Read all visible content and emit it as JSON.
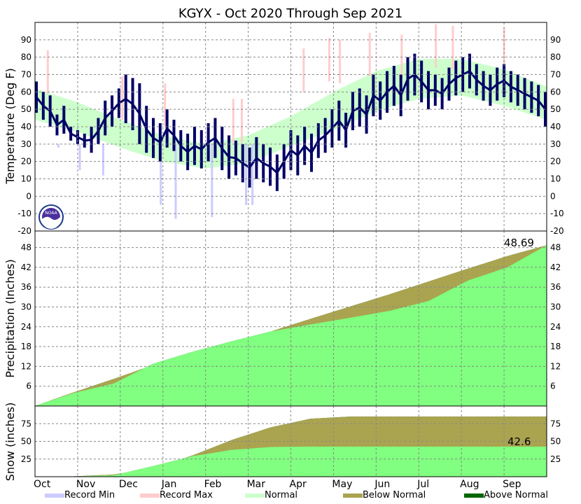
{
  "title": "KGYX - Oct 2020 Through Sep 2021",
  "months": [
    "Oct",
    "Nov",
    "Dec",
    "Jan",
    "Feb",
    "Mar",
    "Apr",
    "May",
    "Jun",
    "Jul",
    "Aug",
    "Sep"
  ],
  "logo_text": "NOAA",
  "colors": {
    "record_min": "#ccccff",
    "record_max": "#ffcccc",
    "normal": "#ccffcc",
    "below_normal": "#aaa450",
    "above_normal": "#006600",
    "observed_fill": "#80ff80",
    "observed_temp": "#000066"
  },
  "legend": [
    {
      "label": "Record Min",
      "color_key": "record_min"
    },
    {
      "label": "Record Max",
      "color_key": "record_max"
    },
    {
      "label": "Normal",
      "color_key": "normal"
    },
    {
      "label": "Below Normal",
      "color_key": "below_normal"
    },
    {
      "label": "Above Normal",
      "color_key": "above_normal"
    }
  ],
  "chart_data": [
    {
      "type": "area",
      "name": "temperature",
      "ylabel": "Temperature (Deg F)",
      "ylim": [
        -20,
        100
      ],
      "yticks": [
        -20,
        -10,
        0,
        10,
        20,
        30,
        40,
        50,
        60,
        70,
        80,
        90
      ],
      "x": "daily, Oct 2020 - Sep 2021 (months)",
      "normal_high": [
        62,
        54,
        44,
        35,
        30,
        35,
        46,
        60,
        72,
        79,
        79,
        73,
        63
      ],
      "normal_low": [
        44,
        37,
        28,
        20,
        16,
        19,
        29,
        38,
        49,
        56,
        58,
        52,
        44
      ],
      "observed_high": [
        66,
        60,
        58,
        47,
        52,
        40,
        38,
        36,
        40,
        45,
        55,
        58,
        62,
        70,
        68,
        65,
        52,
        45,
        42,
        50,
        44,
        38,
        36,
        40,
        38,
        42,
        45,
        40,
        35,
        32,
        30,
        28,
        34,
        30,
        28,
        24,
        30,
        38,
        35,
        40,
        36,
        42,
        45,
        50,
        55,
        48,
        60,
        62,
        58,
        70,
        66,
        72,
        75,
        70,
        80,
        82,
        78,
        72,
        70,
        68,
        74,
        78,
        80,
        82,
        76,
        72,
        70,
        74,
        76,
        72,
        70,
        68,
        66,
        64,
        60
      ],
      "observed_low": [
        48,
        44,
        40,
        35,
        36,
        32,
        30,
        28,
        25,
        30,
        35,
        40,
        45,
        42,
        38,
        30,
        25,
        22,
        20,
        28,
        26,
        20,
        15,
        18,
        16,
        20,
        22,
        15,
        10,
        12,
        8,
        5,
        10,
        8,
        6,
        3,
        10,
        15,
        12,
        18,
        14,
        22,
        25,
        28,
        32,
        28,
        38,
        40,
        36,
        46,
        44,
        48,
        52,
        46,
        55,
        58,
        54,
        50,
        52,
        50,
        55,
        58,
        60,
        62,
        58,
        55,
        52,
        55,
        57,
        54,
        52,
        50,
        48,
        46,
        40
      ],
      "record_min_spikes": [
        [
          0.55,
          28
        ],
        [
          1.05,
          15
        ],
        [
          1.6,
          12
        ],
        [
          2.95,
          -5
        ],
        [
          3.3,
          -13
        ],
        [
          4.15,
          -12
        ],
        [
          4.95,
          -5
        ],
        [
          5.1,
          -5
        ],
        [
          8.1,
          40
        ],
        [
          9.55,
          50
        ],
        [
          11.3,
          45
        ]
      ],
      "record_max_spikes": [
        [
          0.3,
          84
        ],
        [
          2.05,
          69
        ],
        [
          3.05,
          65
        ],
        [
          4.65,
          56
        ],
        [
          4.85,
          56
        ],
        [
          6.3,
          85
        ],
        [
          6.9,
          91
        ],
        [
          7.15,
          90
        ],
        [
          7.85,
          94
        ],
        [
          8.6,
          93
        ],
        [
          9.4,
          99
        ],
        [
          9.8,
          98
        ],
        [
          11.0,
          97
        ]
      ]
    },
    {
      "type": "area",
      "name": "precipitation",
      "ylabel": "Precipitation (Inches)",
      "ylim": [
        0,
        53
      ],
      "yticks": [
        6,
        12,
        18,
        24,
        30,
        36,
        42,
        48
      ],
      "annotation": "48.69",
      "normal_cumulative": [
        0,
        4.2,
        8.2,
        12.4,
        15.8,
        18.9,
        22.6,
        26.4,
        30.1,
        33.8,
        37.7,
        41.6,
        45.4,
        48.69
      ],
      "observed_cumulative": [
        0,
        4.0,
        6.8,
        12.8,
        16.4,
        19.6,
        22.6,
        24.7,
        26.7,
        28.8,
        31.8,
        38.0,
        42.0,
        48.69
      ]
    },
    {
      "type": "area",
      "name": "snow",
      "ylabel": "Snow (inches)",
      "ylim": [
        0,
        100
      ],
      "yticks": [
        25,
        50,
        75
      ],
      "annotation": "42.6",
      "normal_cumulative": [
        0,
        0.5,
        3,
        12,
        30,
        52,
        70,
        82,
        85,
        85,
        85,
        85,
        85,
        85
      ],
      "observed_cumulative": [
        0,
        0.3,
        2,
        15,
        29,
        38,
        42,
        42.6,
        42.6,
        42.6,
        42.6,
        42.6,
        42.6,
        42.6
      ]
    }
  ]
}
